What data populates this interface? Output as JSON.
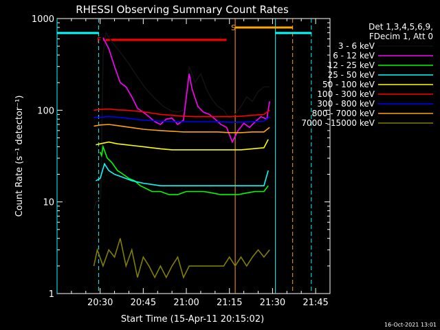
{
  "chart_data": {
    "type": "line",
    "title": "RHESSI Observing Summary Count Rates",
    "xlabel": "Start Time (15-Apr-11 20:15:02)",
    "ylabel": "Count Rate (s⁻¹ detector⁻¹)",
    "y_scale": "log",
    "ylim": [
      1,
      1000
    ],
    "xlim_minutes": [
      0,
      95
    ],
    "x_ticks": [
      {
        "t": 15,
        "label": "20:30"
      },
      {
        "t": 30,
        "label": "20:45"
      },
      {
        "t": 45,
        "label": "21:00"
      },
      {
        "t": 60,
        "label": "21:15"
      },
      {
        "t": 75,
        "label": "21:30"
      },
      {
        "t": 90,
        "label": "21:45"
      }
    ],
    "y_ticks": [
      {
        "v": 1,
        "label": "1"
      },
      {
        "v": 10,
        "label": "10"
      },
      {
        "v": 100,
        "label": "100"
      },
      {
        "v": 1000,
        "label": "1000"
      }
    ],
    "legend_header": [
      "Det 1,3,4,5,6,9,",
      "FDecim 1, Att 0"
    ],
    "legend_placement": "right",
    "footer_date": "16-Oct-2021 13:01",
    "attenuator_flag_label": "F",
    "saa_flag_label": "S",
    "series": [
      {
        "name": "3 - 6 keV",
        "color": "#000000",
        "points": [
          [
            12.8,
            8
          ],
          [
            13.5,
            10
          ],
          [
            15.2,
            11
          ],
          [
            16,
            400
          ],
          [
            17,
            700
          ],
          [
            19,
            560
          ],
          [
            22,
            430
          ],
          [
            25,
            320
          ],
          [
            28,
            230
          ],
          [
            31,
            170
          ],
          [
            34,
            135
          ],
          [
            37,
            110
          ],
          [
            40,
            98
          ],
          [
            42,
            95
          ],
          [
            44,
            100
          ],
          [
            46,
            300
          ],
          [
            48,
            200
          ],
          [
            50,
            250
          ],
          [
            52,
            170
          ],
          [
            54,
            130
          ],
          [
            56,
            110
          ],
          [
            58,
            100
          ],
          [
            60,
            82
          ],
          [
            62,
            90
          ],
          [
            64,
            110
          ],
          [
            66,
            140
          ],
          [
            68,
            125
          ],
          [
            70,
            160
          ],
          [
            72,
            180
          ],
          [
            74,
            180
          ]
        ]
      },
      {
        "name": "6 - 12 keV",
        "color": "#ff00ff",
        "points": [
          [
            16,
            620
          ],
          [
            18,
            470
          ],
          [
            20,
            300
          ],
          [
            22,
            200
          ],
          [
            24,
            180
          ],
          [
            26,
            140
          ],
          [
            28,
            105
          ],
          [
            30,
            95
          ],
          [
            32,
            85
          ],
          [
            34,
            75
          ],
          [
            36,
            70
          ],
          [
            38,
            80
          ],
          [
            40,
            82
          ],
          [
            42,
            70
          ],
          [
            44,
            78
          ],
          [
            46,
            250
          ],
          [
            47,
            170
          ],
          [
            49,
            110
          ],
          [
            51,
            95
          ],
          [
            53,
            90
          ],
          [
            55,
            80
          ],
          [
            57,
            70
          ],
          [
            59,
            65
          ],
          [
            61,
            45
          ],
          [
            63,
            60
          ],
          [
            65,
            72
          ],
          [
            67,
            65
          ],
          [
            69,
            75
          ],
          [
            71,
            85
          ],
          [
            73,
            80
          ],
          [
            74,
            125
          ]
        ]
      },
      {
        "name": "12 - 25 keV",
        "color": "#00ff00",
        "points": [
          [
            15,
            35
          ],
          [
            15.5,
            32
          ],
          [
            16,
            40
          ],
          [
            17.5,
            30
          ],
          [
            19,
            27
          ],
          [
            21,
            22
          ],
          [
            23,
            20
          ],
          [
            25,
            18
          ],
          [
            27,
            17
          ],
          [
            29,
            15
          ],
          [
            31,
            14
          ],
          [
            33,
            13
          ],
          [
            36,
            13
          ],
          [
            39,
            12
          ],
          [
            42,
            12
          ],
          [
            45,
            13
          ],
          [
            48,
            13
          ],
          [
            51,
            13
          ],
          [
            54,
            12.5
          ],
          [
            57,
            12
          ],
          [
            60,
            12
          ],
          [
            63,
            12
          ],
          [
            66,
            12.5
          ],
          [
            69,
            13
          ],
          [
            72,
            13
          ],
          [
            73.5,
            15
          ]
        ]
      },
      {
        "name": "25 - 50 keV",
        "color": "#00ffff",
        "points": [
          [
            13.5,
            17
          ],
          [
            15,
            18
          ],
          [
            16.5,
            26
          ],
          [
            18,
            22
          ],
          [
            20,
            20
          ],
          [
            22,
            19
          ],
          [
            24,
            18
          ],
          [
            26,
            17
          ],
          [
            28,
            16.5
          ],
          [
            30,
            16
          ],
          [
            33,
            15.5
          ],
          [
            36,
            15
          ],
          [
            40,
            15
          ],
          [
            44,
            15
          ],
          [
            48,
            15
          ],
          [
            52,
            15
          ],
          [
            56,
            15
          ],
          [
            60,
            15
          ],
          [
            64,
            15
          ],
          [
            68,
            15
          ],
          [
            72,
            15
          ],
          [
            73.5,
            22
          ]
        ]
      },
      {
        "name": "50 - 100 keV",
        "color": "#ffff00",
        "points": [
          [
            13.5,
            42
          ],
          [
            15,
            43
          ],
          [
            18,
            45
          ],
          [
            21,
            43
          ],
          [
            24,
            42
          ],
          [
            27,
            41
          ],
          [
            30,
            40
          ],
          [
            33,
            39
          ],
          [
            36,
            38
          ],
          [
            40,
            37
          ],
          [
            44,
            37
          ],
          [
            48,
            37
          ],
          [
            52,
            37
          ],
          [
            56,
            37
          ],
          [
            60,
            37
          ],
          [
            64,
            37
          ],
          [
            68,
            38
          ],
          [
            72,
            39
          ],
          [
            73.5,
            48
          ]
        ]
      },
      {
        "name": "100 - 300 keV",
        "color": "#ff0000",
        "points": [
          [
            12.8,
            100
          ],
          [
            15,
            102
          ],
          [
            18,
            103
          ],
          [
            21,
            101
          ],
          [
            24,
            100
          ],
          [
            27,
            98
          ],
          [
            30,
            96
          ],
          [
            33,
            93
          ],
          [
            36,
            90
          ],
          [
            40,
            88
          ],
          [
            44,
            86
          ],
          [
            48,
            85
          ],
          [
            52,
            85
          ],
          [
            56,
            85
          ],
          [
            60,
            85
          ],
          [
            64,
            86
          ],
          [
            68,
            88
          ],
          [
            72,
            90
          ],
          [
            74,
            100
          ]
        ]
      },
      {
        "name": "300 - 800 keV",
        "color": "#0000ff",
        "points": [
          [
            12.8,
            83
          ],
          [
            15,
            84
          ],
          [
            18,
            85
          ],
          [
            21,
            84
          ],
          [
            24,
            82
          ],
          [
            27,
            80
          ],
          [
            30,
            78
          ],
          [
            33,
            77
          ],
          [
            36,
            76
          ],
          [
            40,
            75
          ],
          [
            44,
            75
          ],
          [
            48,
            75
          ],
          [
            52,
            75
          ],
          [
            56,
            75
          ],
          [
            60,
            74
          ],
          [
            64,
            74
          ],
          [
            68,
            75
          ],
          [
            72,
            76
          ],
          [
            74,
            85
          ]
        ]
      },
      {
        "name": "800 - 7000 keV",
        "color": "#ffa500",
        "points": [
          [
            12.8,
            67
          ],
          [
            15,
            69
          ],
          [
            18,
            70
          ],
          [
            21,
            68
          ],
          [
            24,
            66
          ],
          [
            27,
            64
          ],
          [
            30,
            62
          ],
          [
            33,
            61
          ],
          [
            36,
            60
          ],
          [
            40,
            59
          ],
          [
            44,
            58
          ],
          [
            48,
            58
          ],
          [
            52,
            58
          ],
          [
            56,
            58
          ],
          [
            60,
            57
          ],
          [
            64,
            57
          ],
          [
            68,
            58
          ],
          [
            72,
            58
          ],
          [
            74,
            65
          ]
        ]
      },
      {
        "name": "7000 - 15000 keV",
        "color": "#808000",
        "points": [
          [
            12.8,
            2
          ],
          [
            14,
            3
          ],
          [
            16,
            2
          ],
          [
            18,
            3
          ],
          [
            20,
            2.5
          ],
          [
            22,
            4
          ],
          [
            24,
            2
          ],
          [
            26,
            3
          ],
          [
            28,
            1.5
          ],
          [
            30,
            2.5
          ],
          [
            32,
            2
          ],
          [
            34,
            1.5
          ],
          [
            36,
            2
          ],
          [
            38,
            1.5
          ],
          [
            40,
            2
          ],
          [
            42,
            2.5
          ],
          [
            44,
            1.5
          ],
          [
            46,
            2
          ],
          [
            48,
            2
          ],
          [
            50,
            2
          ],
          [
            52,
            2
          ],
          [
            54,
            2
          ],
          [
            56,
            2
          ],
          [
            58,
            2
          ],
          [
            60,
            2.5
          ],
          [
            62,
            2
          ],
          [
            64,
            2.5
          ],
          [
            66,
            2
          ],
          [
            68,
            2.5
          ],
          [
            70,
            3
          ],
          [
            72,
            2.5
          ],
          [
            74,
            3
          ]
        ]
      }
    ],
    "saa_intervals": [
      [
        0,
        14.5
      ],
      [
        76,
        88.5
      ]
    ],
    "attenuator_interval": [
      16,
      59
    ]
  }
}
